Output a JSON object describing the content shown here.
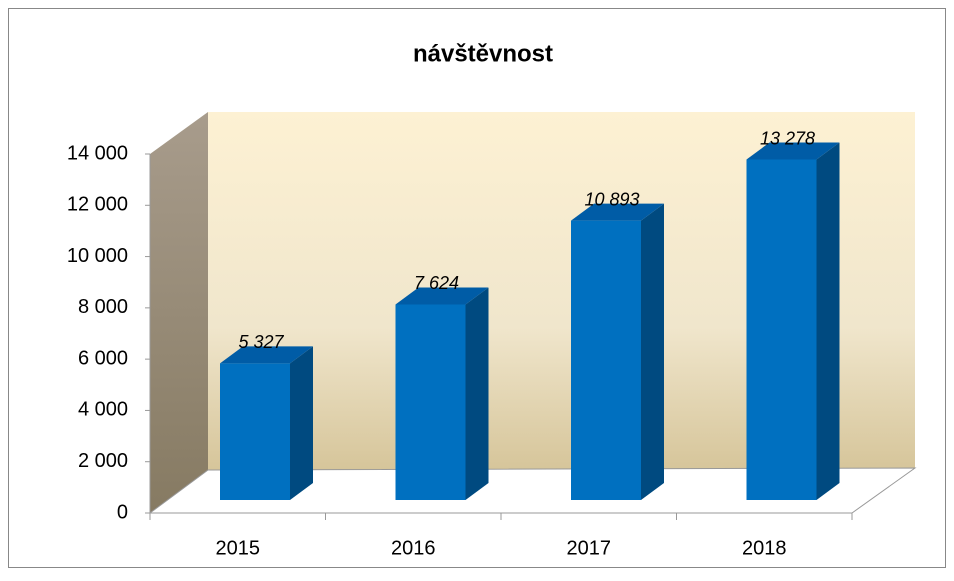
{
  "chart_data": {
    "type": "bar3d",
    "title": "návštěvnost",
    "categories": [
      "2015",
      "2016",
      "2017",
      "2018"
    ],
    "values": [
      5327,
      7624,
      10893,
      13278
    ],
    "value_labels": [
      "5 327",
      "7 624",
      "10 893",
      "13 278"
    ],
    "color": "#0070c0",
    "ylim": [
      0,
      14000
    ],
    "yticks": [
      0,
      {
        "value": 2000,
        "label": "2 000"
      },
      {
        "value": 4000,
        "label": "4 000"
      },
      {
        "value": 6000,
        "label": "6 000"
      },
      {
        "value": 8000,
        "label": "8 000"
      },
      {
        "value": 10000,
        "label": "10 000"
      },
      {
        "value": 12000,
        "label": "12 000"
      },
      {
        "value": 14000,
        "label": "14 000"
      }
    ],
    "grid": false
  }
}
